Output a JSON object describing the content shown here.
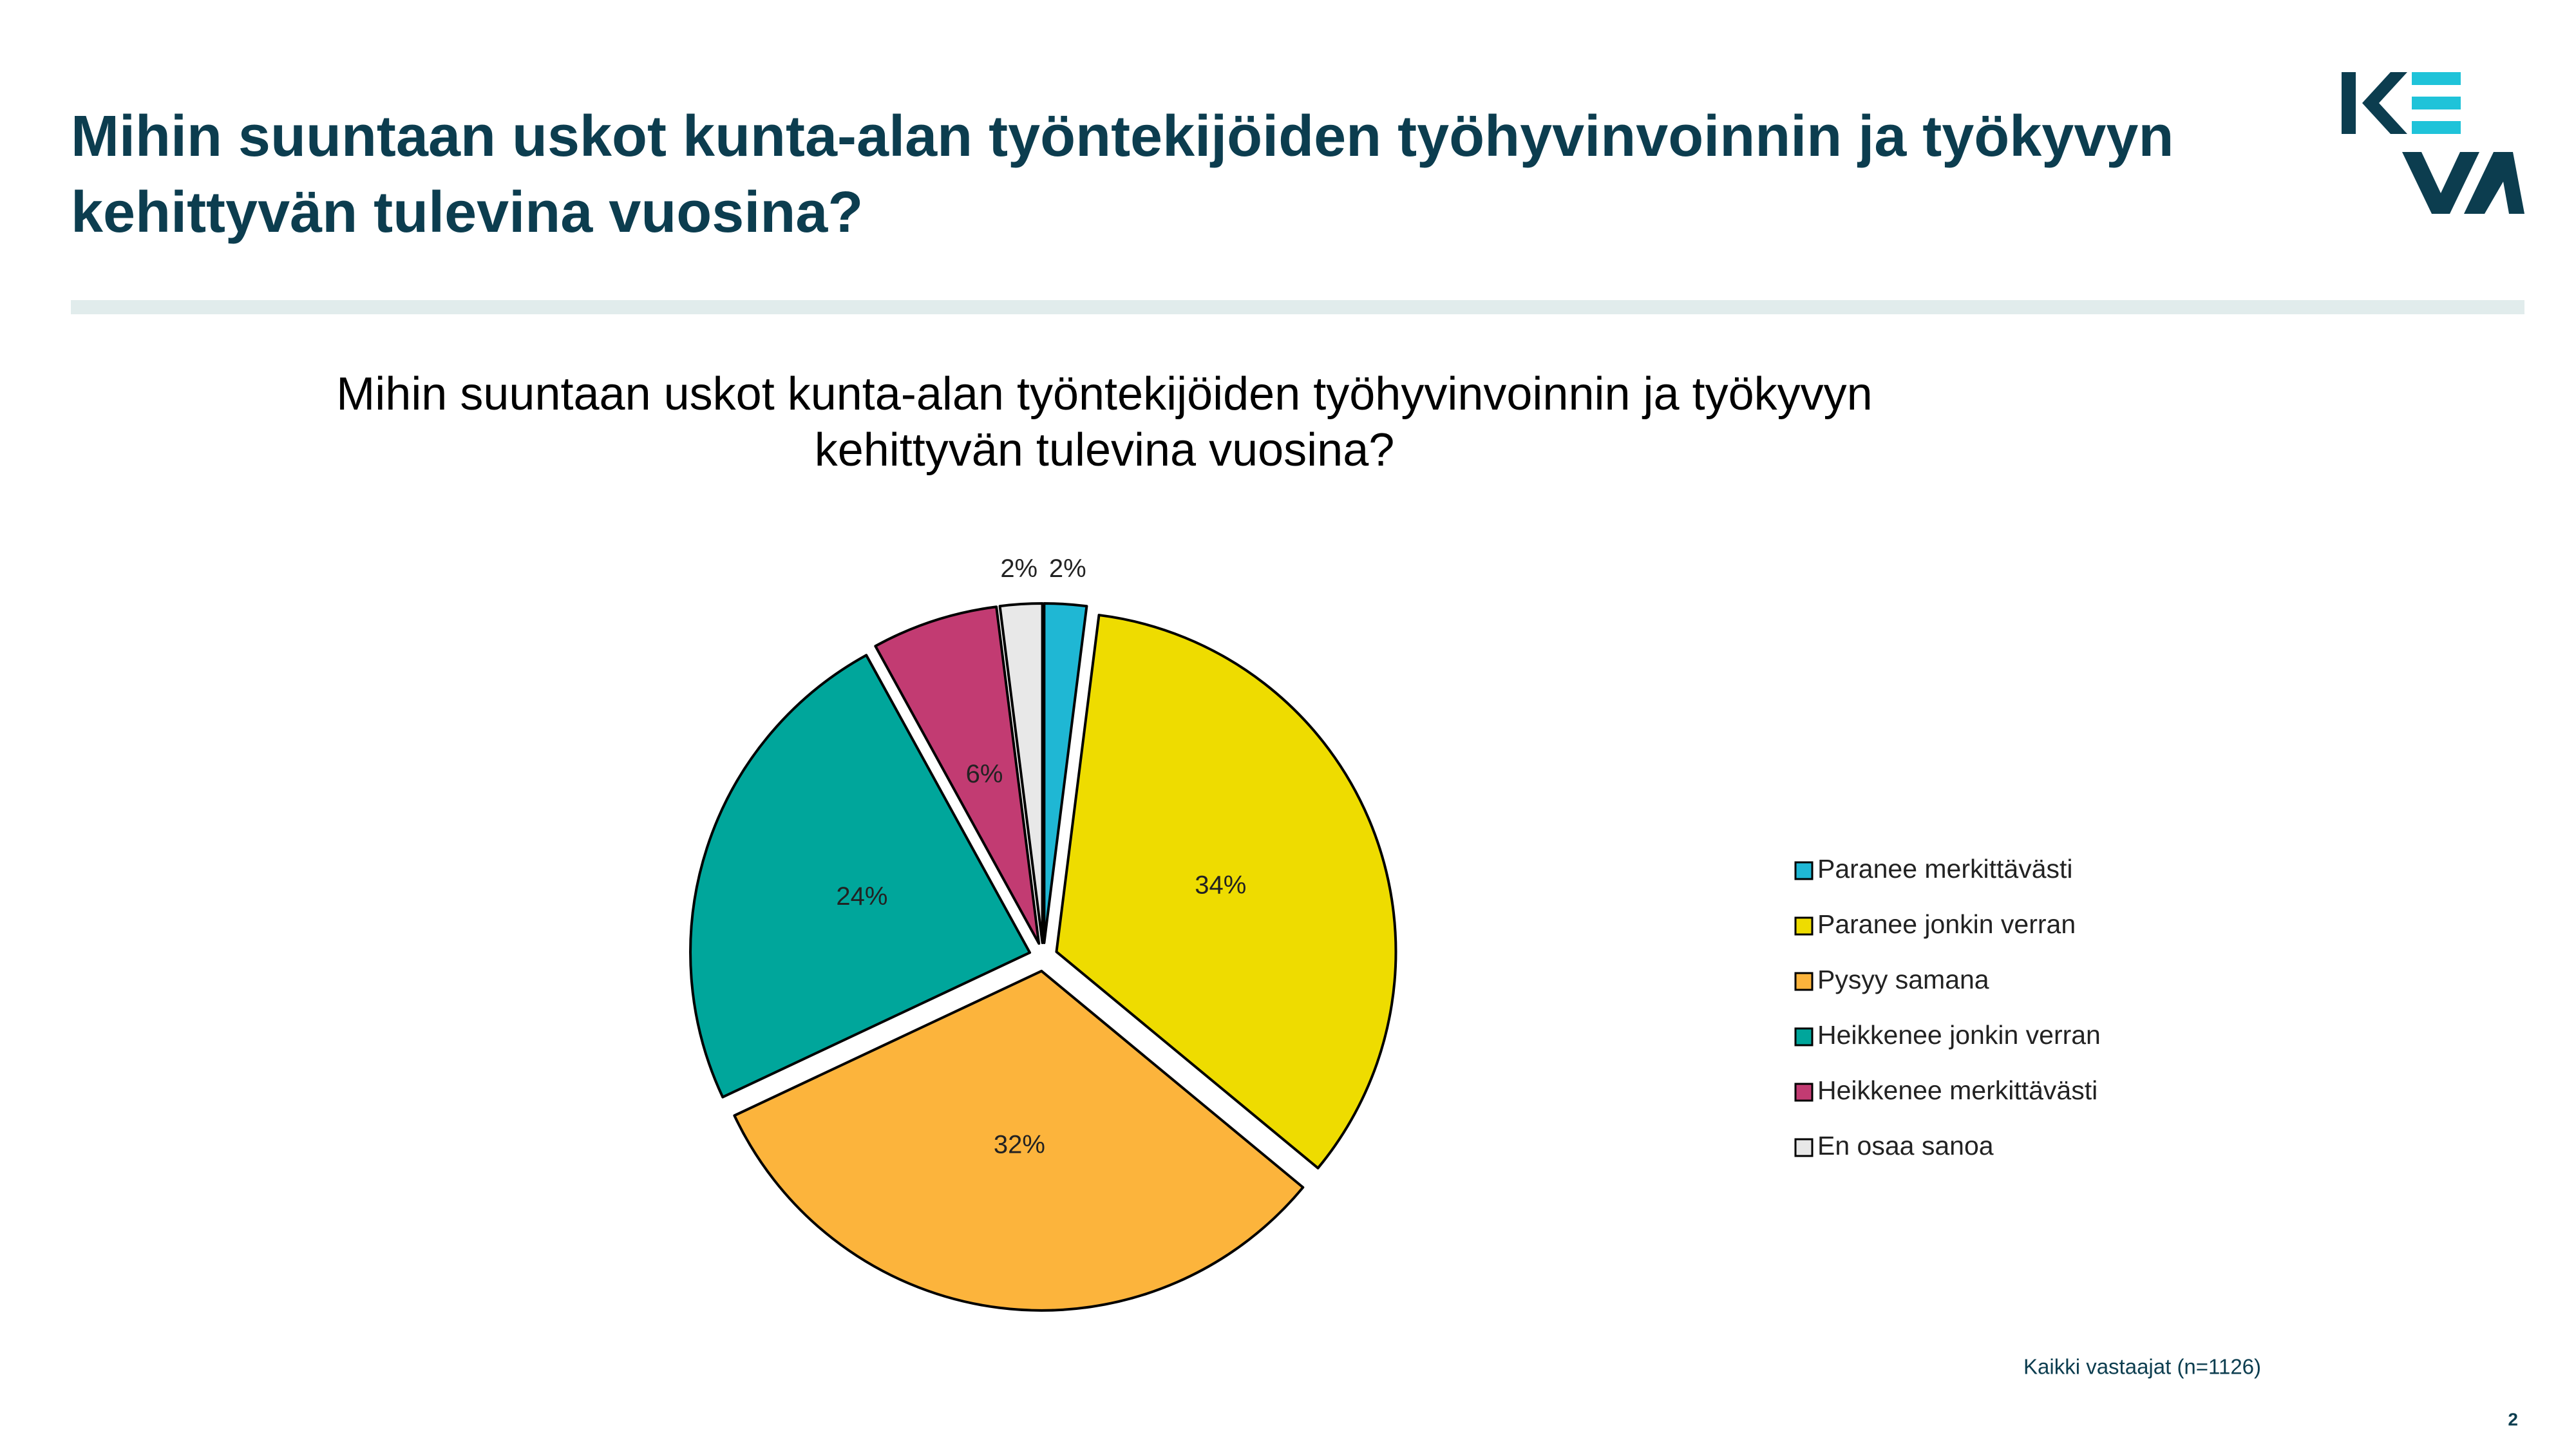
{
  "header": {
    "title": [
      "Mihin suuntaan uskot kunta-alan työntekijöiden työhyvinvoinnin ja työkyvyn",
      "kehittyvän tulevina vuosina?"
    ]
  },
  "chart_data": {
    "type": "pie",
    "title": [
      "Mihin suuntaan uskot kunta-alan työntekijöiden työhyvinvoinnin ja työkyvyn",
      "kehittyvän tulevina vuosina?"
    ],
    "categories": [
      "Paranee merkittävästi",
      "Paranee jonkin verran",
      "Pysyy samana",
      "Heikkenee jonkin verran",
      "Heikkenee merkittävästi",
      "En osaa sanoa"
    ],
    "values": [
      2,
      34,
      32,
      24,
      6,
      2
    ],
    "value_labels": [
      "2%",
      "34%",
      "32%",
      "24%",
      "6%",
      "2%"
    ],
    "colors": [
      "#1fb7d4",
      "#eedc00",
      "#fcb43c",
      "#00a69b",
      "#c23b72",
      "#e8e8e8"
    ],
    "legend": "right"
  },
  "footnote": "Kaikki vastaajat (n=1126)",
  "page_number": "2"
}
